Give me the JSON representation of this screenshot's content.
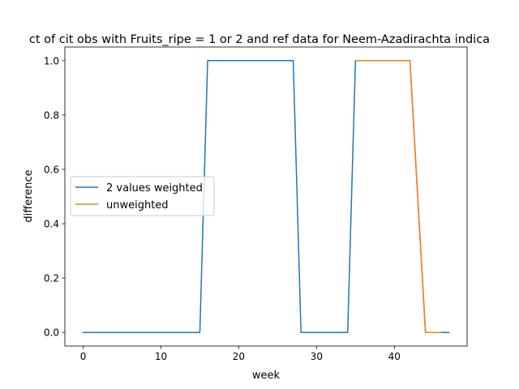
{
  "chart_data": {
    "type": "line",
    "title": "ct of cit obs with Fruits_ripe = 1 or 2 and ref data for Neem-Azadirachta indica",
    "xlabel": "week",
    "ylabel": "difference",
    "xlim": [
      -2.35,
      49.35
    ],
    "ylim": [
      -0.05,
      1.05
    ],
    "xticks": [
      0,
      10,
      20,
      30,
      40
    ],
    "yticks": [
      0.0,
      0.2,
      0.4,
      0.6,
      0.8,
      1.0
    ],
    "ytick_labels": [
      "0.0",
      "0.2",
      "0.4",
      "0.6",
      "0.8",
      "1.0"
    ],
    "legend_position": "center-left",
    "grid": false,
    "series": [
      {
        "name": "2 values weighted",
        "color": "#1f77b4",
        "x": [
          0,
          15,
          16,
          27,
          28,
          34,
          35,
          42,
          44,
          47
        ],
        "y": [
          0,
          0,
          1,
          1,
          0,
          0,
          1,
          1,
          0,
          0
        ]
      },
      {
        "name": "unweighted",
        "color": "#ff7f0e",
        "x": [
          35,
          42,
          44,
          46
        ],
        "y": [
          1,
          1,
          0,
          0
        ]
      }
    ]
  }
}
